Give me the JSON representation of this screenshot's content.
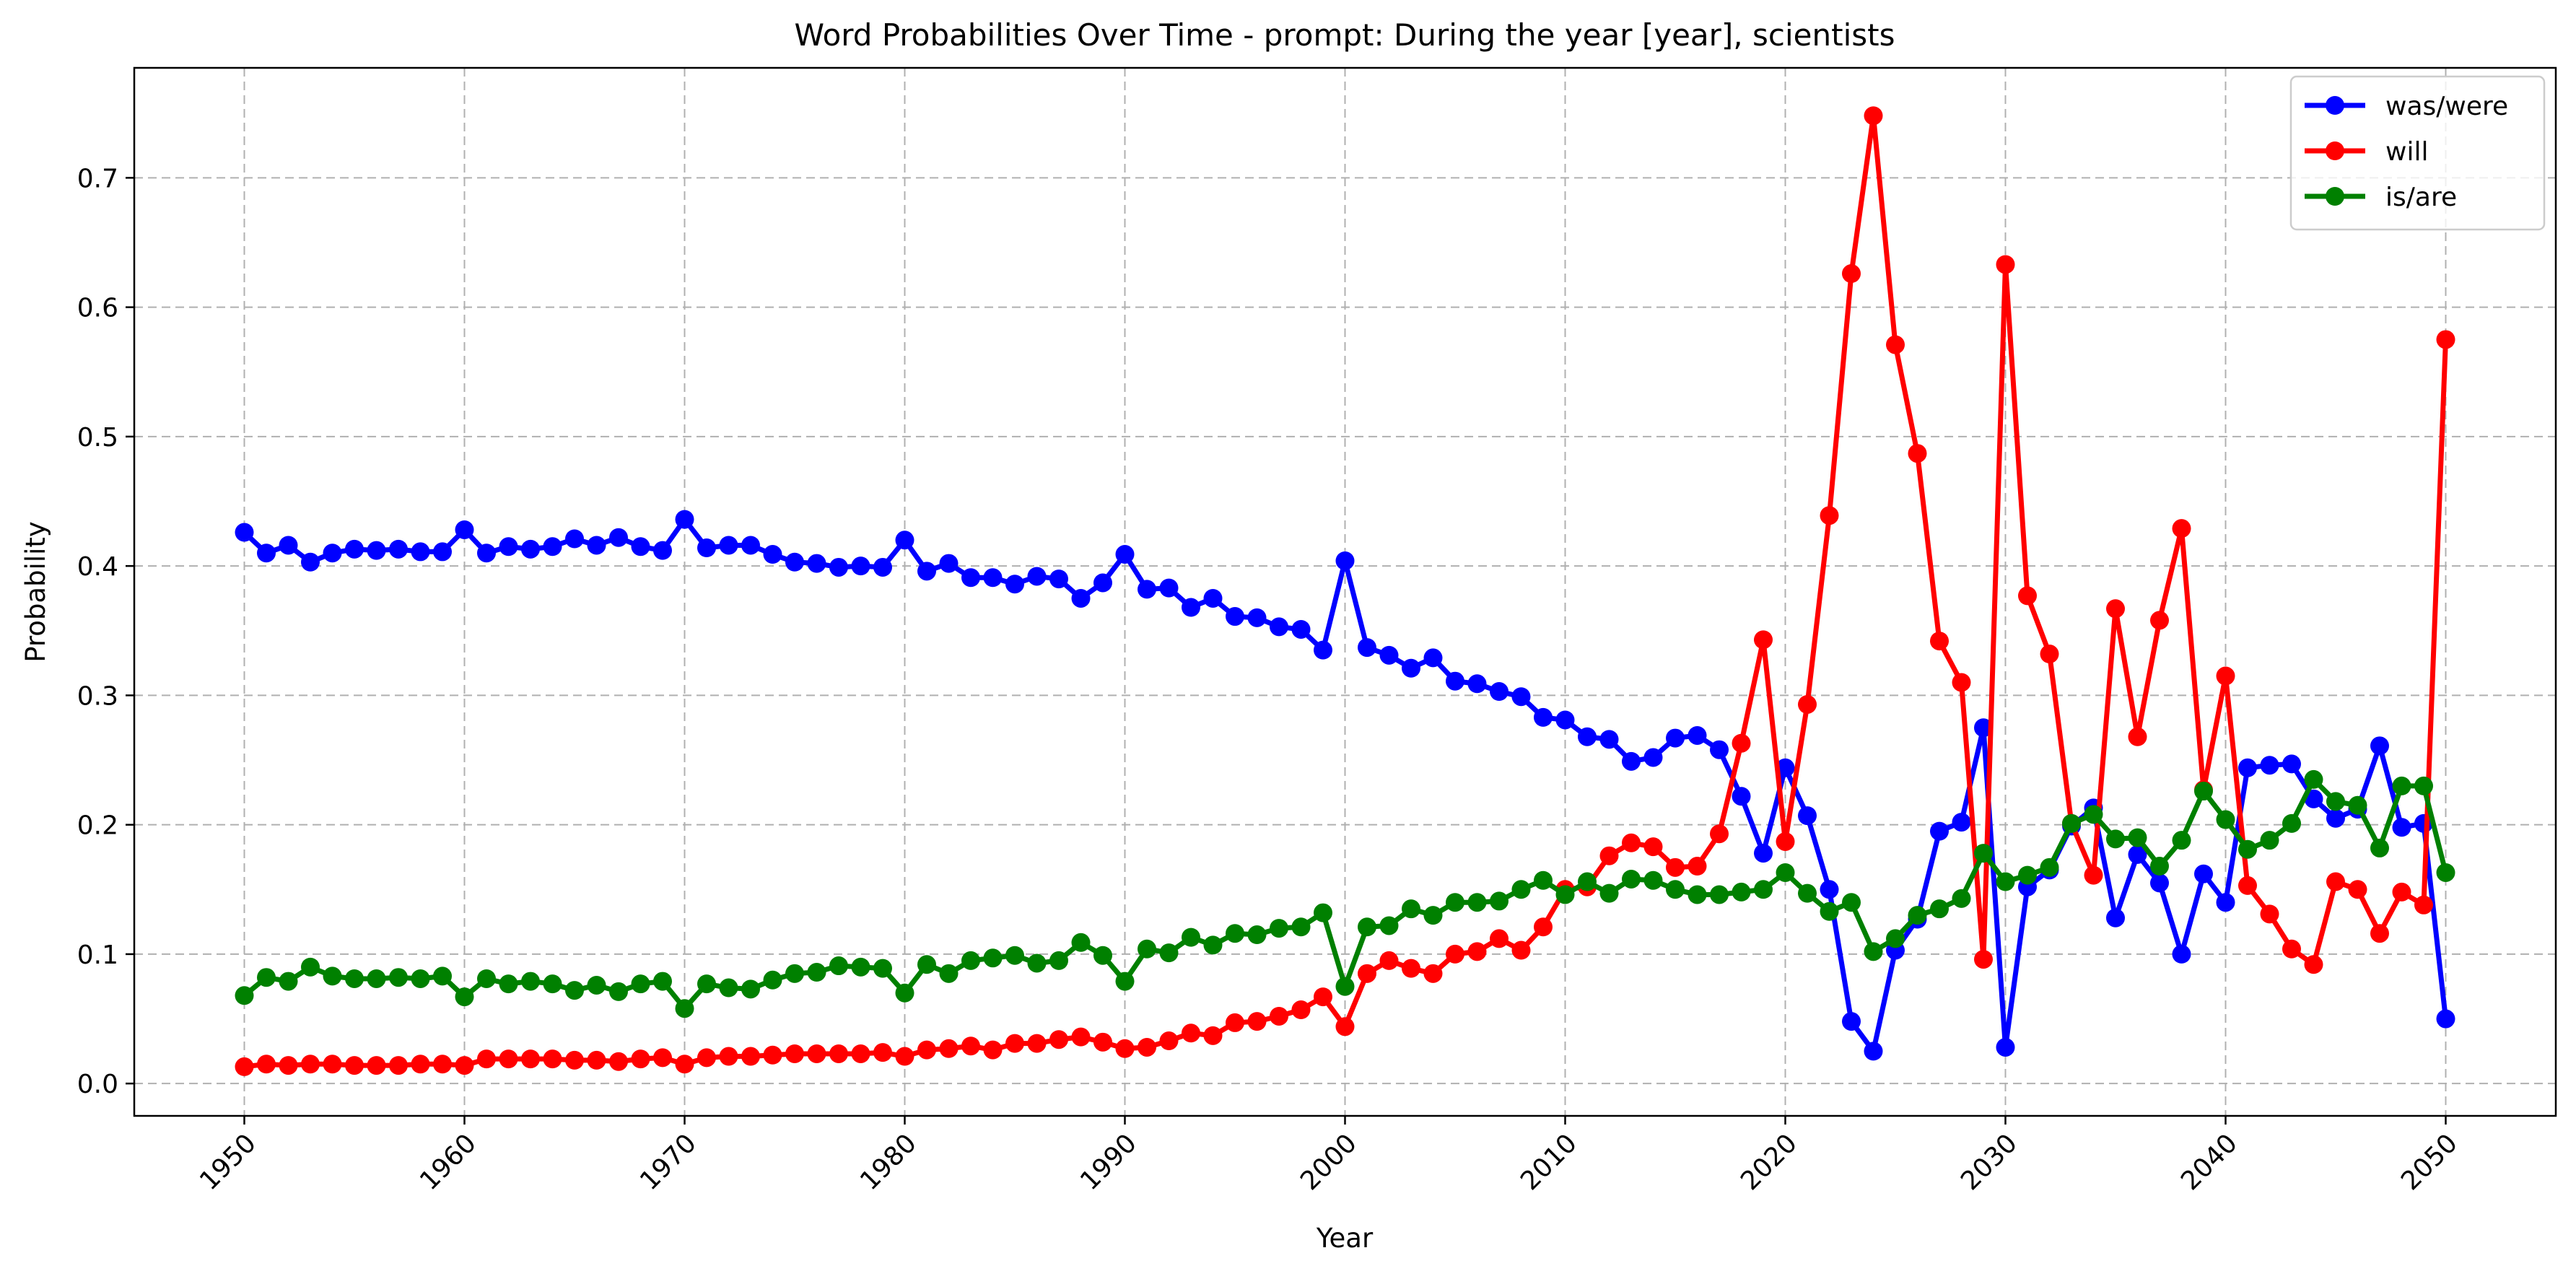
{
  "chart_data": {
    "type": "line",
    "title": "Word Probabilities Over Time - prompt: During the year [year], scientists",
    "xlabel": "Year",
    "ylabel": "Probability",
    "xlim": [
      1945,
      2055
    ],
    "ylim": [
      -0.025,
      0.785
    ],
    "xticks": [
      "1950",
      "1960",
      "1970",
      "1980",
      "1990",
      "2000",
      "2010",
      "2020",
      "2030",
      "2040",
      "2050"
    ],
    "yticks": [
      "0.0",
      "0.1",
      "0.2",
      "0.3",
      "0.4",
      "0.5",
      "0.6",
      "0.7"
    ],
    "grid": true,
    "legend_position": "top-right",
    "x": [
      1950,
      1951,
      1952,
      1953,
      1954,
      1955,
      1956,
      1957,
      1958,
      1959,
      1960,
      1961,
      1962,
      1963,
      1964,
      1965,
      1966,
      1967,
      1968,
      1969,
      1970,
      1971,
      1972,
      1973,
      1974,
      1975,
      1976,
      1977,
      1978,
      1979,
      1980,
      1981,
      1982,
      1983,
      1984,
      1985,
      1986,
      1987,
      1988,
      1989,
      1990,
      1991,
      1992,
      1993,
      1994,
      1995,
      1996,
      1997,
      1998,
      1999,
      2000,
      2001,
      2002,
      2003,
      2004,
      2005,
      2006,
      2007,
      2008,
      2009,
      2010,
      2011,
      2012,
      2013,
      2014,
      2015,
      2016,
      2017,
      2018,
      2019,
      2020,
      2021,
      2022,
      2023,
      2024,
      2025,
      2026,
      2027,
      2028,
      2029,
      2030,
      2031,
      2032,
      2033,
      2034,
      2035,
      2036,
      2037,
      2038,
      2039,
      2040,
      2041,
      2042,
      2043,
      2044,
      2045,
      2046,
      2047,
      2048,
      2049,
      2050
    ],
    "series": [
      {
        "name": "was/were",
        "color": "#0000ff",
        "values": [
          0.426,
          0.41,
          0.416,
          0.403,
          0.41,
          0.413,
          0.412,
          0.413,
          0.411,
          0.411,
          0.428,
          0.41,
          0.415,
          0.413,
          0.415,
          0.421,
          0.416,
          0.422,
          0.415,
          0.412,
          0.436,
          0.414,
          0.416,
          0.416,
          0.409,
          0.403,
          0.402,
          0.399,
          0.4,
          0.399,
          0.42,
          0.396,
          0.402,
          0.391,
          0.391,
          0.386,
          0.392,
          0.39,
          0.375,
          0.387,
          0.409,
          0.382,
          0.383,
          0.368,
          0.375,
          0.361,
          0.36,
          0.353,
          0.351,
          0.335,
          0.404,
          0.337,
          0.331,
          0.321,
          0.329,
          0.311,
          0.309,
          0.303,
          0.299,
          0.283,
          0.281,
          0.268,
          0.266,
          0.249,
          0.252,
          0.267,
          0.269,
          0.258,
          0.222,
          0.178,
          0.244,
          0.207,
          0.15,
          0.048,
          0.025,
          0.103,
          0.127,
          0.195,
          0.202,
          0.275,
          0.028,
          0.152,
          0.165,
          0.199,
          0.213,
          0.128,
          0.177,
          0.155,
          0.1,
          0.162,
          0.14,
          0.244,
          0.246,
          0.247,
          0.22,
          0.205,
          0.212,
          0.261,
          0.198,
          0.201,
          0.05
        ]
      },
      {
        "name": "will",
        "color": "#ff0000",
        "values": [
          0.013,
          0.015,
          0.014,
          0.015,
          0.015,
          0.014,
          0.014,
          0.014,
          0.015,
          0.015,
          0.014,
          0.019,
          0.019,
          0.019,
          0.019,
          0.018,
          0.018,
          0.017,
          0.019,
          0.02,
          0.015,
          0.02,
          0.021,
          0.021,
          0.022,
          0.023,
          0.023,
          0.023,
          0.023,
          0.024,
          0.021,
          0.026,
          0.027,
          0.029,
          0.026,
          0.031,
          0.031,
          0.034,
          0.036,
          0.032,
          0.027,
          0.028,
          0.033,
          0.039,
          0.037,
          0.047,
          0.048,
          0.052,
          0.057,
          0.067,
          0.044,
          0.085,
          0.095,
          0.089,
          0.085,
          0.1,
          0.102,
          0.112,
          0.103,
          0.121,
          0.15,
          0.152,
          0.176,
          0.186,
          0.183,
          0.167,
          0.168,
          0.193,
          0.263,
          0.343,
          0.187,
          0.293,
          0.439,
          0.626,
          0.748,
          0.571,
          0.487,
          0.342,
          0.31,
          0.096,
          0.633,
          0.377,
          0.332,
          0.201,
          0.161,
          0.367,
          0.268,
          0.358,
          0.429,
          0.227,
          0.315,
          0.153,
          0.131,
          0.104,
          0.092,
          0.156,
          0.15,
          0.116,
          0.148,
          0.138,
          0.575
        ]
      },
      {
        "name": "is/are",
        "color": "#008000",
        "values": [
          0.068,
          0.082,
          0.079,
          0.09,
          0.083,
          0.081,
          0.081,
          0.082,
          0.081,
          0.083,
          0.067,
          0.081,
          0.077,
          0.079,
          0.077,
          0.072,
          0.076,
          0.071,
          0.077,
          0.079,
          0.058,
          0.077,
          0.074,
          0.073,
          0.08,
          0.085,
          0.086,
          0.091,
          0.09,
          0.089,
          0.07,
          0.092,
          0.085,
          0.095,
          0.097,
          0.099,
          0.093,
          0.095,
          0.109,
          0.099,
          0.079,
          0.104,
          0.101,
          0.113,
          0.107,
          0.116,
          0.115,
          0.12,
          0.121,
          0.132,
          0.075,
          0.121,
          0.122,
          0.135,
          0.13,
          0.14,
          0.14,
          0.141,
          0.15,
          0.157,
          0.146,
          0.156,
          0.147,
          0.158,
          0.157,
          0.15,
          0.146,
          0.146,
          0.148,
          0.15,
          0.163,
          0.147,
          0.133,
          0.14,
          0.102,
          0.112,
          0.13,
          0.135,
          0.143,
          0.178,
          0.156,
          0.161,
          0.167,
          0.201,
          0.208,
          0.189,
          0.19,
          0.168,
          0.188,
          0.226,
          0.204,
          0.181,
          0.188,
          0.201,
          0.235,
          0.218,
          0.215,
          0.182,
          0.23,
          0.23,
          0.163
        ]
      }
    ]
  }
}
